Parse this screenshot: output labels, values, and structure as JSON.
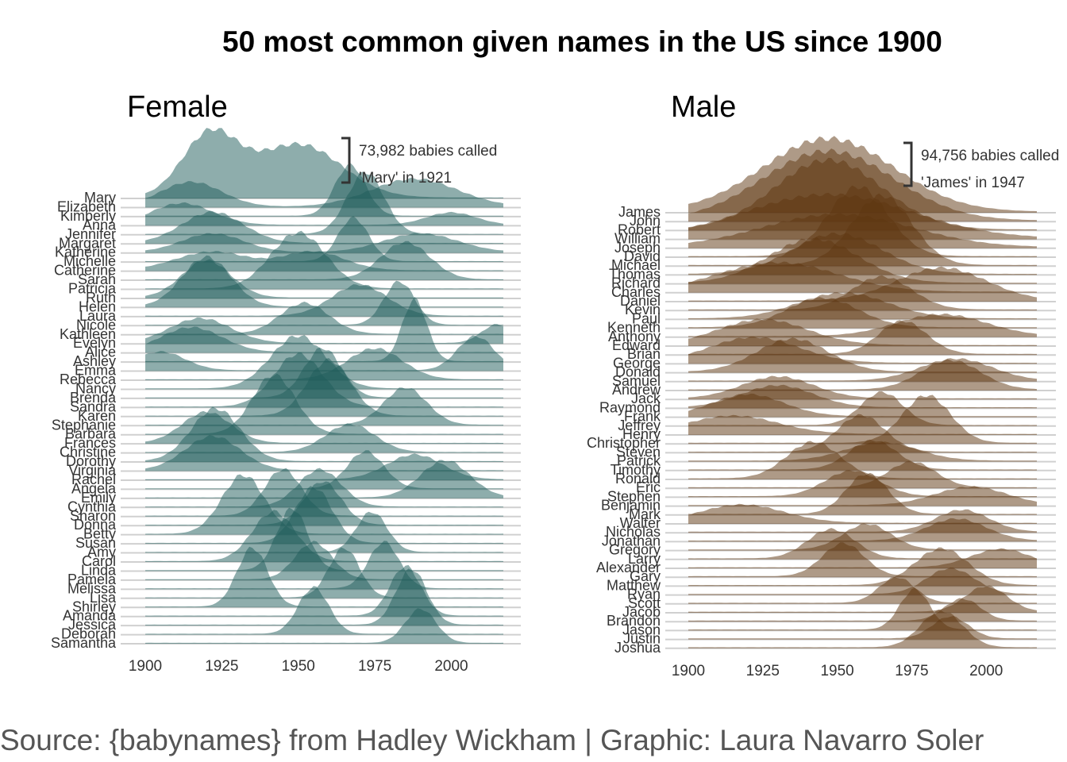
{
  "title": "50 most common given names in the US since 1900",
  "caption": "Source: {babynames} from Hadley Wickham | Graphic: Laura Navarro Soler",
  "colors": {
    "female": "#1e5b59",
    "male": "#5e3510",
    "baseline": "#d0d0d0",
    "axis_text": "#333333"
  },
  "chart_data": [
    {
      "type": "area",
      "subtitle": "Female",
      "xlim": [
        1900,
        2017
      ],
      "x_ticks": [
        1900,
        1925,
        1950,
        1975,
        2000
      ],
      "annotation": {
        "line1": "73,982 babies called",
        "line2": "'Mary' in 1921",
        "value": 73982,
        "name": "Mary",
        "year": 1921
      },
      "series": [
        {
          "name": "Mary",
          "peaks": [
            [
              1921,
              1.0,
              9
            ],
            [
              1950,
              0.86,
              14
            ]
          ]
        },
        {
          "name": "Elizabeth",
          "peaks": [
            [
              1915,
              0.4,
              10
            ],
            [
              1988,
              0.45,
              14
            ]
          ]
        },
        {
          "name": "Kimberly",
          "peaks": [
            [
              1967,
              0.82,
              5
            ]
          ]
        },
        {
          "name": "Anna",
          "peaks": [
            [
              1912,
              0.35,
              10
            ],
            [
              2000,
              0.2,
              8
            ]
          ]
        },
        {
          "name": "Jennifer",
          "peaks": [
            [
              1972,
              1.0,
              6
            ]
          ]
        },
        {
          "name": "Margaret",
          "peaks": [
            [
              1922,
              0.5,
              10
            ]
          ]
        },
        {
          "name": "Katherine",
          "peaks": [
            [
              1922,
              0.3,
              10
            ],
            [
              1990,
              0.3,
              12
            ]
          ]
        },
        {
          "name": "Michelle",
          "peaks": [
            [
              1968,
              0.7,
              5
            ]
          ]
        },
        {
          "name": "Catherine",
          "peaks": [
            [
              1922,
              0.3,
              12
            ],
            [
              1955,
              0.3,
              10
            ]
          ]
        },
        {
          "name": "Sarah",
          "peaks": [
            [
              1985,
              0.6,
              8
            ]
          ]
        },
        {
          "name": "Patricia",
          "peaks": [
            [
              1950,
              0.9,
              9
            ]
          ]
        },
        {
          "name": "Ruth",
          "peaks": [
            [
              1920,
              0.6,
              8
            ]
          ]
        },
        {
          "name": "Helen",
          "peaks": [
            [
              1920,
              0.8,
              8
            ]
          ]
        },
        {
          "name": "Laura",
          "peaks": [
            [
              1970,
              0.5,
              9
            ]
          ]
        },
        {
          "name": "Nicole",
          "peaks": [
            [
              1983,
              0.7,
              5
            ]
          ]
        },
        {
          "name": "Kathleen",
          "peaks": [
            [
              1952,
              0.5,
              8
            ]
          ]
        },
        {
          "name": "Evelyn",
          "peaks": [
            [
              1918,
              0.4,
              10
            ],
            [
              2015,
              0.3,
              5
            ]
          ]
        },
        {
          "name": "Alice",
          "peaks": [
            [
              1915,
              0.4,
              10
            ]
          ]
        },
        {
          "name": "Ashley",
          "peaks": [
            [
              1988,
              1.0,
              4
            ]
          ]
        },
        {
          "name": "Emma",
          "peaks": [
            [
              1905,
              0.3,
              8
            ],
            [
              2008,
              0.55,
              6
            ]
          ]
        },
        {
          "name": "Rebecca",
          "peaks": [
            [
              1975,
              0.5,
              9
            ]
          ]
        },
        {
          "name": "Nancy",
          "peaks": [
            [
              1950,
              0.85,
              9
            ]
          ]
        },
        {
          "name": "Brenda",
          "peaks": [
            [
              1958,
              0.8,
              6
            ]
          ]
        },
        {
          "name": "Sandra",
          "peaks": [
            [
              1950,
              0.85,
              8
            ]
          ]
        },
        {
          "name": "Karen",
          "peaks": [
            [
              1960,
              0.9,
              7
            ]
          ]
        },
        {
          "name": "Stephanie",
          "peaks": [
            [
              1985,
              0.6,
              7
            ]
          ]
        },
        {
          "name": "Barbara",
          "peaks": [
            [
              1942,
              0.95,
              7
            ]
          ]
        },
        {
          "name": "Frances",
          "peaks": [
            [
              1920,
              0.5,
              8
            ]
          ]
        },
        {
          "name": "Christine",
          "peaks": [
            [
              1967,
              0.45,
              8
            ]
          ]
        },
        {
          "name": "Dorothy",
          "peaks": [
            [
              1923,
              0.85,
              8
            ]
          ]
        },
        {
          "name": "Virginia",
          "peaks": [
            [
              1922,
              0.55,
              9
            ]
          ]
        },
        {
          "name": "Rachel",
          "peaks": [
            [
              1988,
              0.4,
              9
            ]
          ]
        },
        {
          "name": "Angela",
          "peaks": [
            [
              1972,
              0.6,
              6
            ]
          ]
        },
        {
          "name": "Emily",
          "peaks": [
            [
              1998,
              0.6,
              8
            ]
          ]
        },
        {
          "name": "Cynthia",
          "peaks": [
            [
              1957,
              0.6,
              7
            ]
          ]
        },
        {
          "name": "Sharon",
          "peaks": [
            [
              1945,
              0.75,
              6
            ]
          ]
        },
        {
          "name": "Donna",
          "peaks": [
            [
              1958,
              0.7,
              6
            ]
          ]
        },
        {
          "name": "Betty",
          "peaks": [
            [
              1932,
              0.95,
              7
            ]
          ]
        },
        {
          "name": "Susan",
          "peaks": [
            [
              1955,
              0.9,
              6
            ]
          ]
        },
        {
          "name": "Amy",
          "peaks": [
            [
              1974,
              0.65,
              5
            ]
          ]
        },
        {
          "name": "Carol",
          "peaks": [
            [
              1942,
              0.8,
              7
            ]
          ]
        },
        {
          "name": "Linda",
          "peaks": [
            [
              1948,
              1.0,
              5
            ]
          ]
        },
        {
          "name": "Pamela",
          "peaks": [
            [
              1955,
              0.6,
              6
            ]
          ]
        },
        {
          "name": "Melissa",
          "peaks": [
            [
              1978,
              0.75,
              5
            ]
          ]
        },
        {
          "name": "Lisa",
          "peaks": [
            [
              1965,
              0.8,
              5
            ]
          ]
        },
        {
          "name": "Shirley",
          "peaks": [
            [
              1935,
              0.95,
              5
            ]
          ]
        },
        {
          "name": "Amanda",
          "peaks": [
            [
              1985,
              0.8,
              5
            ]
          ]
        },
        {
          "name": "Jessica",
          "peaks": [
            [
              1987,
              0.9,
              5
            ]
          ]
        },
        {
          "name": "Deborah",
          "peaks": [
            [
              1955,
              0.75,
              5
            ]
          ]
        },
        {
          "name": "Samantha",
          "peaks": [
            [
              1990,
              0.55,
              5
            ]
          ]
        }
      ]
    },
    {
      "type": "area",
      "subtitle": "Male",
      "xlim": [
        1900,
        2017
      ],
      "x_ticks": [
        1900,
        1925,
        1950,
        1975,
        2000
      ],
      "annotation": {
        "line1": "94,756 babies called",
        "line2": "'James' in 1947",
        "value": 94756,
        "name": "James",
        "year": 1947
      },
      "series": [
        {
          "name": "James",
          "peaks": [
            [
              1947,
              1.0,
              22
            ]
          ]
        },
        {
          "name": "John",
          "peaks": [
            [
              1947,
              0.95,
              22
            ]
          ]
        },
        {
          "name": "Robert",
          "peaks": [
            [
              1947,
              0.95,
              18
            ]
          ]
        },
        {
          "name": "William",
          "peaks": [
            [
              1947,
              0.6,
              28
            ]
          ]
        },
        {
          "name": "Joseph",
          "peaks": [
            [
              1950,
              0.45,
              25
            ]
          ]
        },
        {
          "name": "David",
          "peaks": [
            [
              1957,
              0.95,
              10
            ]
          ]
        },
        {
          "name": "Michael",
          "peaks": [
            [
              1965,
              0.95,
              10
            ]
          ]
        },
        {
          "name": "Thomas",
          "peaks": [
            [
              1950,
              0.55,
              15
            ]
          ]
        },
        {
          "name": "Richard",
          "peaks": [
            [
              1942,
              0.6,
              15
            ]
          ]
        },
        {
          "name": "Charles",
          "peaks": [
            [
              1930,
              0.4,
              20
            ]
          ]
        },
        {
          "name": "Daniel",
          "peaks": [
            [
              1985,
              0.45,
              15
            ]
          ]
        },
        {
          "name": "Kevin",
          "peaks": [
            [
              1965,
              0.45,
              10
            ]
          ]
        },
        {
          "name": "Paul",
          "peaks": [
            [
              1952,
              0.35,
              15
            ]
          ]
        },
        {
          "name": "Kenneth",
          "peaks": [
            [
              1945,
              0.4,
              12
            ]
          ]
        },
        {
          "name": "Anthony",
          "peaks": [
            [
              1985,
              0.3,
              15
            ]
          ]
        },
        {
          "name": "Edward",
          "peaks": [
            [
              1925,
              0.35,
              15
            ]
          ]
        },
        {
          "name": "Brian",
          "peaks": [
            [
              1972,
              0.45,
              8
            ]
          ]
        },
        {
          "name": "George",
          "peaks": [
            [
              1922,
              0.35,
              15
            ]
          ]
        },
        {
          "name": "Donald",
          "peaks": [
            [
              1935,
              0.45,
              12
            ]
          ]
        },
        {
          "name": "Samuel",
          "peaks": [
            [
              1990,
              0.3,
              12
            ]
          ]
        },
        {
          "name": "Andrew",
          "peaks": [
            [
              1988,
              0.4,
              10
            ]
          ]
        },
        {
          "name": "Jack",
          "peaks": [
            [
              1930,
              0.3,
              12
            ]
          ]
        },
        {
          "name": "Raymond",
          "peaks": [
            [
              1930,
              0.3,
              12
            ]
          ]
        },
        {
          "name": "Frank",
          "peaks": [
            [
              1920,
              0.3,
              12
            ]
          ]
        },
        {
          "name": "Jeffrey",
          "peaks": [
            [
              1965,
              0.45,
              7
            ]
          ]
        },
        {
          "name": "Henry",
          "peaks": [
            [
              1915,
              0.25,
              15
            ]
          ]
        },
        {
          "name": "Christopher",
          "peaks": [
            [
              1980,
              0.65,
              8
            ]
          ]
        },
        {
          "name": "Steven",
          "peaks": [
            [
              1958,
              0.5,
              8
            ]
          ]
        },
        {
          "name": "Patrick",
          "peaks": [
            [
              1965,
              0.25,
              12
            ]
          ]
        },
        {
          "name": "Timothy",
          "peaks": [
            [
              1962,
              0.4,
              8
            ]
          ]
        },
        {
          "name": "Ronald",
          "peaks": [
            [
              1942,
              0.5,
              9
            ]
          ]
        },
        {
          "name": "Eric",
          "peaks": [
            [
              1975,
              0.35,
              8
            ]
          ]
        },
        {
          "name": "Stephen",
          "peaks": [
            [
              1955,
              0.35,
              9
            ]
          ]
        },
        {
          "name": "Benjamin",
          "peaks": [
            [
              1995,
              0.25,
              12
            ]
          ]
        },
        {
          "name": "Mark",
          "peaks": [
            [
              1960,
              0.55,
              7
            ]
          ]
        },
        {
          "name": "Walter",
          "peaks": [
            [
              1918,
              0.25,
              14
            ]
          ]
        },
        {
          "name": "Nicholas",
          "peaks": [
            [
              1992,
              0.3,
              9
            ]
          ]
        },
        {
          "name": "Jonathan",
          "peaks": [
            [
              1990,
              0.3,
              10
            ]
          ]
        },
        {
          "name": "Gregory",
          "peaks": [
            [
              1960,
              0.35,
              8
            ]
          ]
        },
        {
          "name": "Larry",
          "peaks": [
            [
              1948,
              0.4,
              8
            ]
          ]
        },
        {
          "name": "Alexander",
          "peaks": [
            [
              2005,
              0.25,
              10
            ]
          ]
        },
        {
          "name": "Gary",
          "peaks": [
            [
              1952,
              0.45,
              7
            ]
          ]
        },
        {
          "name": "Matthew",
          "peaks": [
            [
              1985,
              0.5,
              9
            ]
          ]
        },
        {
          "name": "Ryan",
          "peaks": [
            [
              1988,
              0.35,
              8
            ]
          ]
        },
        {
          "name": "Scott",
          "peaks": [
            [
              1970,
              0.35,
              6
            ]
          ]
        },
        {
          "name": "Jacob",
          "peaks": [
            [
              2000,
              0.35,
              7
            ]
          ]
        },
        {
          "name": "Brandon",
          "peaks": [
            [
              1992,
              0.3,
              6
            ]
          ]
        },
        {
          "name": "Jason",
          "peaks": [
            [
              1976,
              0.55,
              5
            ]
          ]
        },
        {
          "name": "Justin",
          "peaks": [
            [
              1988,
              0.3,
              6
            ]
          ]
        },
        {
          "name": "Joshua",
          "peaks": [
            [
              1985,
              0.5,
              7
            ]
          ]
        }
      ]
    }
  ]
}
